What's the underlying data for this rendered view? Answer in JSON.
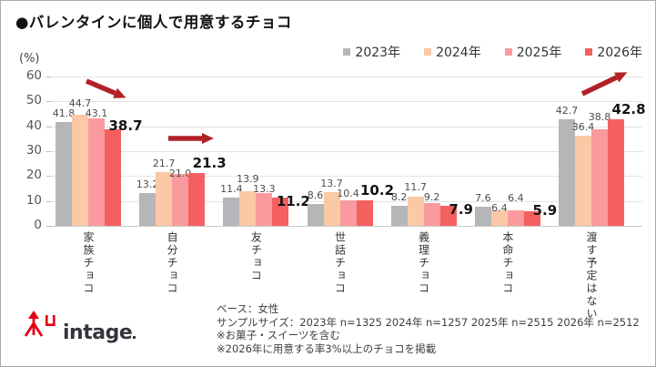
{
  "title": "●バレンタインに個人で用意するチョコ",
  "y_axis": {
    "unit_label": "(%)",
    "ticks": [
      60,
      50,
      40,
      30,
      20,
      10,
      0
    ]
  },
  "legend": [
    {
      "label": "2023年",
      "color": "#b5b6b8"
    },
    {
      "label": "2024年",
      "color": "#fbc9a5"
    },
    {
      "label": "2025年",
      "color": "#fa9a9e"
    },
    {
      "label": "2026年",
      "color": "#f4605f"
    }
  ],
  "chart_data": {
    "type": "bar",
    "title": "バレンタインに個人で用意するチョコ",
    "xlabel": "",
    "ylabel": "(%)",
    "ylim": [
      0,
      60
    ],
    "grid": true,
    "legend_position": "top-right",
    "categories": [
      "家族チョコ",
      "自分チョコ",
      "友チョコ",
      "世話チョコ",
      "義理チョコ",
      "本命チョコ",
      "渡す予定はない"
    ],
    "series": [
      {
        "name": "2023年",
        "color": "#b5b6b8",
        "values": [
          41.8,
          13.2,
          11.4,
          8.6,
          8.2,
          7.6,
          42.7
        ]
      },
      {
        "name": "2024年",
        "color": "#fbc9a5",
        "values": [
          44.7,
          21.7,
          13.9,
          13.7,
          11.7,
          6.4,
          36.4
        ]
      },
      {
        "name": "2025年",
        "color": "#fa9a9e",
        "values": [
          43.1,
          21.0,
          13.3,
          10.4,
          9.2,
          6.4,
          38.8
        ]
      },
      {
        "name": "2026年",
        "color": "#f4605f",
        "values": [
          38.7,
          21.3,
          11.2,
          10.2,
          7.9,
          5.9,
          42.8
        ]
      }
    ],
    "emphasized_series": "2026年",
    "annotations": [
      {
        "category": "家族チョコ",
        "shape": "arrow",
        "direction": "down-right",
        "color": "#b02226"
      },
      {
        "category": "自分チョコ",
        "shape": "arrow",
        "direction": "right",
        "color": "#b02226"
      },
      {
        "category": "渡す予定はない",
        "shape": "arrow",
        "direction": "up-right",
        "color": "#b02226"
      }
    ]
  },
  "footer": {
    "lines": [
      "ベース：女性",
      "サンプルサイズ：2023年 n=1325  2024年 n=1257  2025年 n=2515  2026年 n=2512",
      "※お菓子・スイーツを含む",
      "※2026年に用意する率3%以上のチョコを掲載"
    ]
  },
  "logo": {
    "text": "intage",
    "mark_color": "#e60012"
  }
}
